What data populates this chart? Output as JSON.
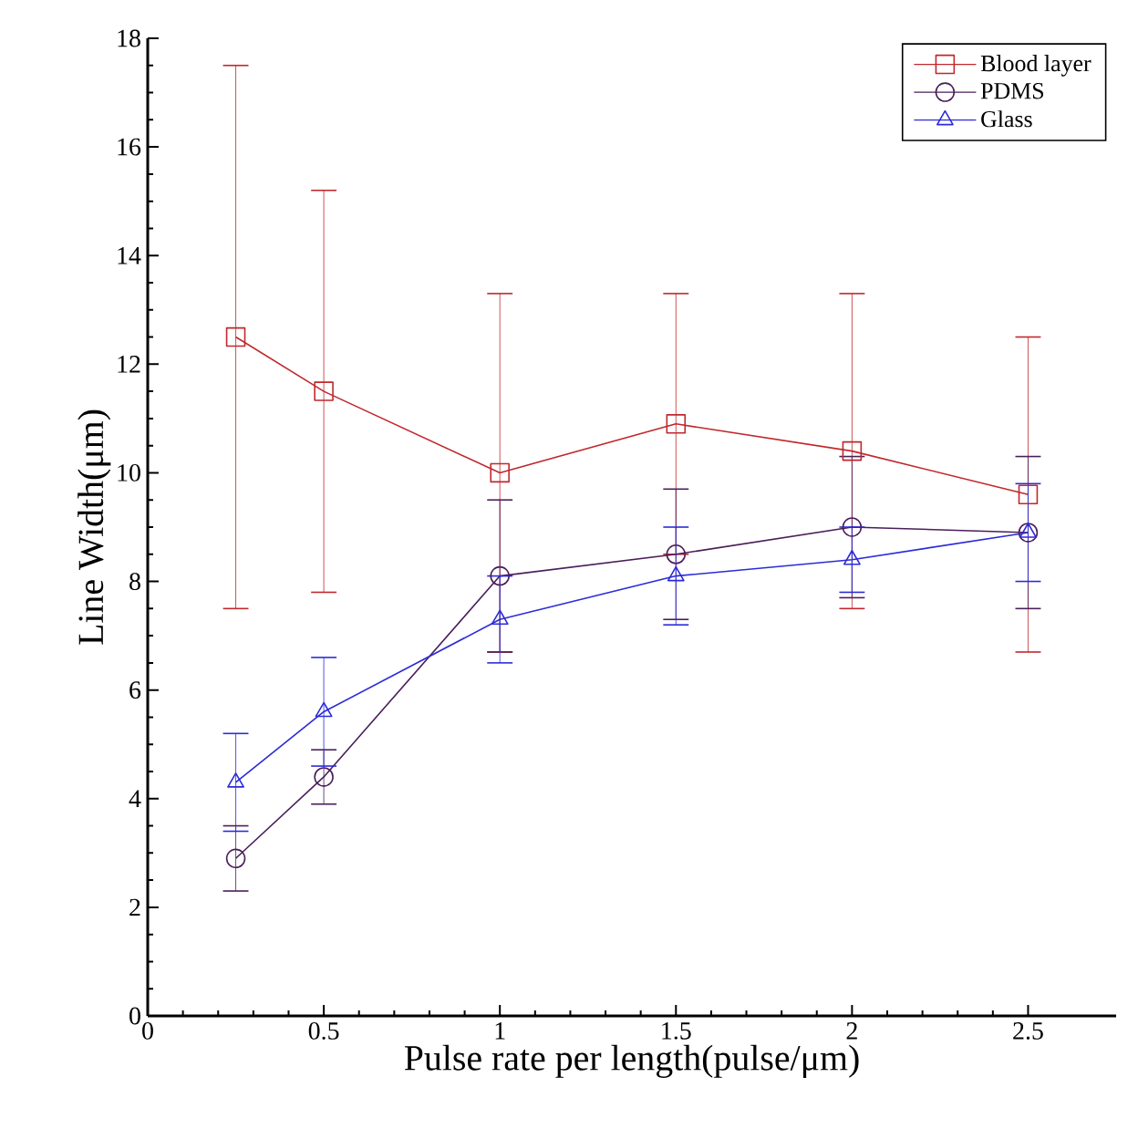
{
  "chart_data": {
    "type": "line",
    "xlabel": "Pulse rate per length(pulse/μm)",
    "ylabel": "Line Width(μm)",
    "x": [
      0.25,
      0.5,
      1,
      1.5,
      2,
      2.5
    ],
    "series": [
      {
        "name": "Blood layer",
        "color": "#c0282d",
        "marker": "square",
        "values": [
          12.5,
          11.5,
          10.0,
          10.9,
          10.4,
          9.6
        ],
        "errors": [
          [
            7.5,
            17.5
          ],
          [
            7.8,
            15.2
          ],
          [
            6.7,
            13.3
          ],
          [
            8.5,
            13.3
          ],
          [
            7.5,
            13.3
          ],
          [
            6.7,
            12.5
          ]
        ]
      },
      {
        "name": "PDMS",
        "color": "#4b1e5a",
        "marker": "circle",
        "values": [
          2.9,
          4.4,
          8.1,
          8.5,
          9.0,
          8.9
        ],
        "errors": [
          [
            2.3,
            3.5
          ],
          [
            3.9,
            4.9
          ],
          [
            6.7,
            9.5
          ],
          [
            7.3,
            9.7
          ],
          [
            7.7,
            10.3
          ],
          [
            7.5,
            10.3
          ]
        ]
      },
      {
        "name": "Glass",
        "color": "#2b2bd9",
        "marker": "triangle",
        "values": [
          4.3,
          5.6,
          7.3,
          8.1,
          8.4,
          8.9
        ],
        "errors": [
          [
            3.4,
            5.2
          ],
          [
            4.6,
            6.6
          ],
          [
            6.5,
            8.1
          ],
          [
            7.2,
            9.0
          ],
          [
            7.8,
            9.0
          ],
          [
            8.0,
            9.8
          ]
        ]
      }
    ],
    "xlim": [
      0,
      2.75
    ],
    "ylim": [
      0,
      18
    ],
    "xticks": [
      0,
      0.5,
      1,
      1.5,
      2,
      2.5
    ],
    "yticks": [
      0,
      2,
      4,
      6,
      8,
      10,
      12,
      14,
      16,
      18
    ],
    "legend": "top right",
    "grid": false
  }
}
